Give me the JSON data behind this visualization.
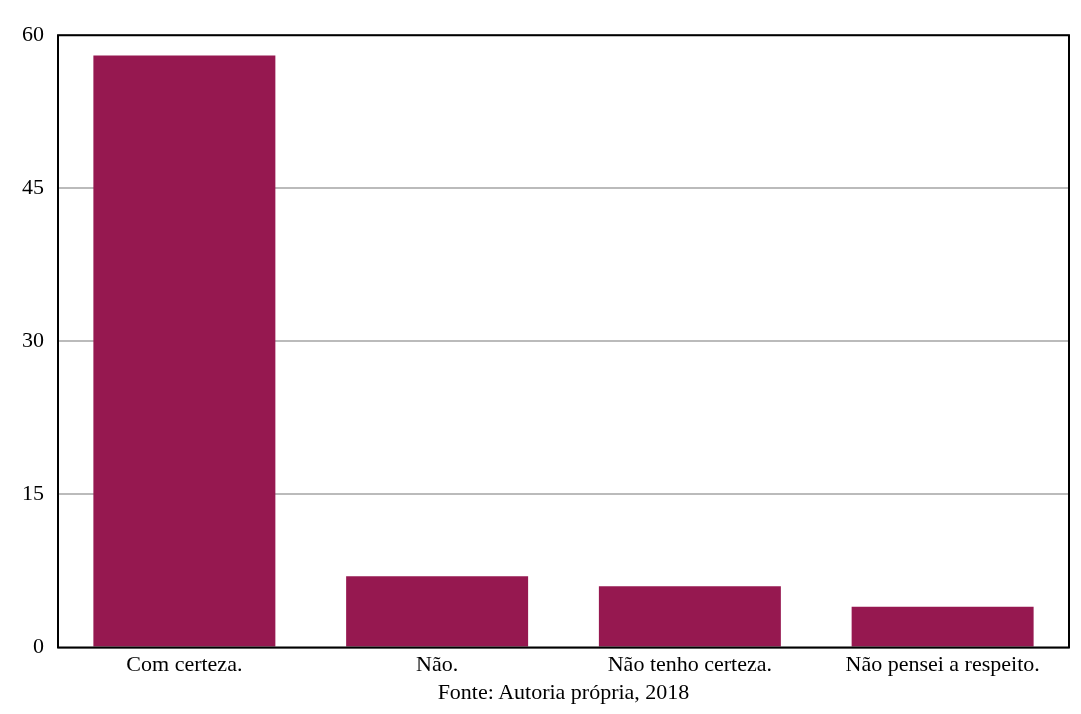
{
  "chart_data": {
    "type": "bar",
    "categories": [
      "Com certeza.",
      "Não.",
      "Não tenho certeza.",
      "Não pensei a respeito."
    ],
    "values": [
      58,
      7,
      6,
      4
    ],
    "color": "#961850",
    "ylim": [
      0,
      60
    ],
    "yticks": [
      0,
      15,
      30,
      45,
      60
    ],
    "grid": "y",
    "legend": false,
    "annotations": [
      "Fonte: Autoria própria, 2018"
    ]
  }
}
